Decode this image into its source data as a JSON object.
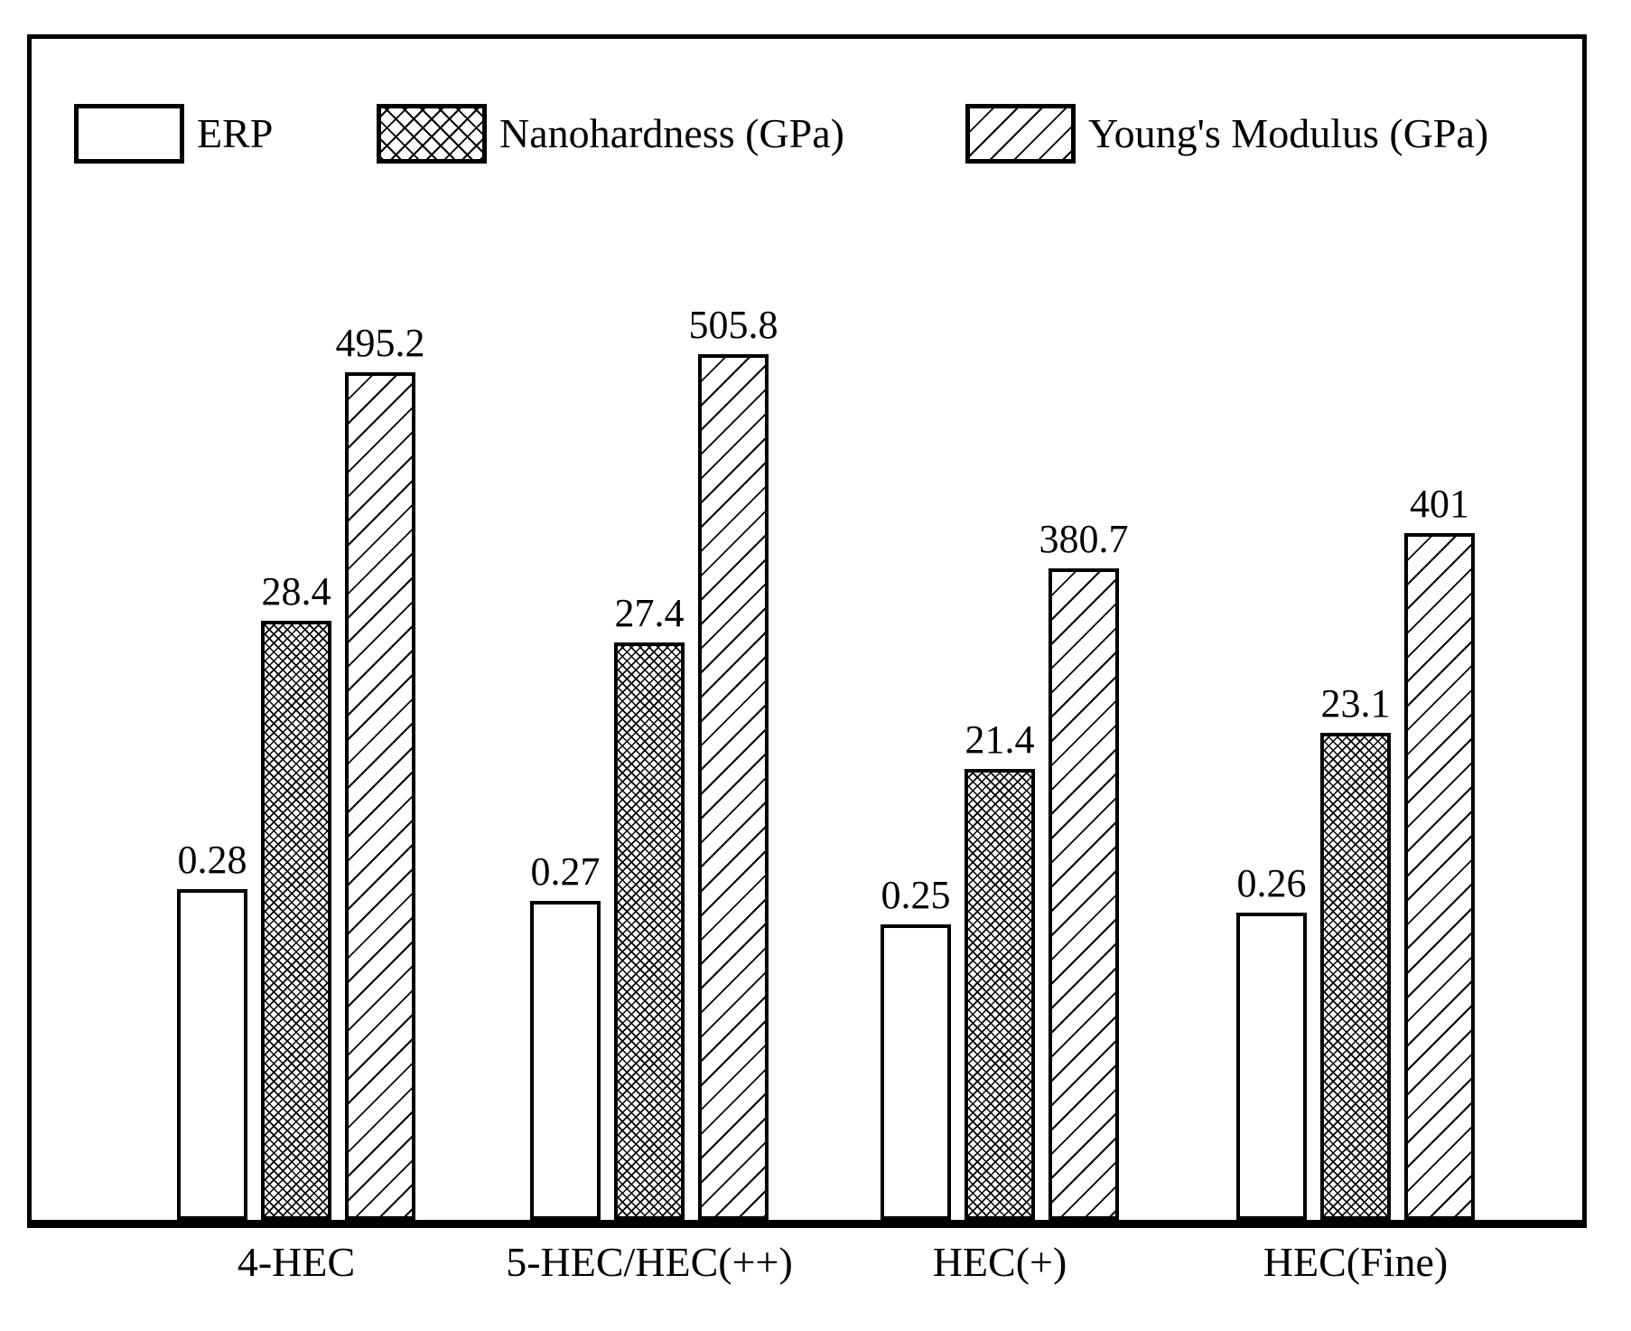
{
  "chart_data": {
    "type": "bar",
    "title": "",
    "xlabel": "",
    "ylabel": "",
    "axes_visible": false,
    "gridlines": false,
    "legend_position": "top-inside",
    "foreground_color": "#000000",
    "background_color": "#ffffff",
    "categories": [
      "4-HEC",
      "5-HEC/HEC(++)",
      "HEC(+)",
      "HEC(Fine)"
    ],
    "series": [
      {
        "name": "ERP",
        "hatch": "none",
        "values": [
          0.28,
          0.27,
          0.25,
          0.26
        ],
        "labels": [
          "0.28",
          "0.27",
          "0.25",
          "0.26"
        ],
        "implied_axis_max": 1.0
      },
      {
        "name": "Nanohardness (GPa)",
        "hatch": "crosshatch",
        "values": [
          28.4,
          27.4,
          21.4,
          23.1
        ],
        "labels": [
          "28.4",
          "27.4",
          "21.4",
          "23.1"
        ],
        "implied_axis_max": 56
      },
      {
        "name": "Young's Modulus (GPa)",
        "hatch": "diagonal",
        "values": [
          495.2,
          505.8,
          380.7,
          401
        ],
        "labels": [
          "495.2",
          "505.8",
          "380.7",
          "401"
        ],
        "implied_axis_max": 690
      }
    ]
  }
}
